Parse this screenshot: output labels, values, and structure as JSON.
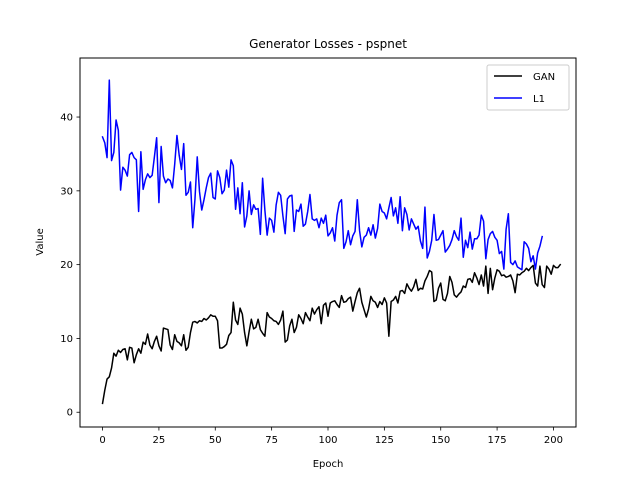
{
  "chart_data": {
    "type": "line",
    "title": "Generator Losses - pspnet",
    "xlabel": "Epoch",
    "ylabel": "Value",
    "xlim": [
      -10,
      210
    ],
    "ylim": [
      -2,
      48
    ],
    "xticks": [
      0,
      25,
      50,
      75,
      100,
      125,
      150,
      175,
      200
    ],
    "yticks": [
      0,
      10,
      20,
      30,
      40
    ],
    "legend_position": "top-right",
    "grid": false,
    "series": [
      {
        "name": "GAN",
        "color": "#000000",
        "x_start": 0,
        "x_step": 1,
        "values": [
          1.2,
          3.0,
          4.5,
          4.8,
          6.0,
          8.0,
          7.6,
          8.4,
          8.1,
          8.5,
          8.6,
          7.1,
          8.8,
          8.7,
          6.7,
          7.8,
          8.6,
          8.0,
          9.5,
          9.2,
          10.6,
          9.1,
          8.6,
          9.6,
          10.3,
          9.0,
          8.3,
          11.4,
          11.3,
          11.2,
          9.1,
          8.5,
          10.5,
          9.6,
          9.4,
          9.0,
          10.5,
          8.4,
          8.8,
          10.8,
          12.2,
          12.3,
          12.1,
          12.4,
          12.3,
          12.7,
          12.5,
          12.8,
          13.2,
          13.0,
          13.0,
          12.4,
          8.7,
          8.7,
          8.9,
          9.2,
          10.4,
          10.8,
          14.9,
          12.5,
          11.9,
          14.1,
          13.3,
          10.8,
          9.0,
          10.9,
          12.6,
          11.3,
          11.5,
          12.6,
          11.2,
          10.7,
          10.3,
          13.5,
          12.9,
          12.7,
          12.4,
          12.3,
          11.9,
          12.5,
          13.7,
          9.5,
          9.8,
          11.7,
          12.6,
          10.8,
          11.5,
          13.2,
          12.7,
          12.0,
          13.5,
          12.9,
          12.4,
          14.1,
          13.3,
          13.9,
          14.3,
          12.0,
          14.5,
          14.8,
          13.0,
          14.8,
          15.0,
          15.1,
          14.6,
          14.2,
          15.8,
          14.9,
          15.0,
          15.4,
          15.6,
          13.7,
          15.0,
          16.2,
          16.8,
          14.9,
          13.9,
          12.9,
          14.0,
          15.7,
          15.1,
          14.9,
          14.2,
          15.0,
          14.6,
          15.5,
          14.8,
          10.3,
          15.0,
          15.2,
          15.7,
          14.8,
          16.4,
          16.5,
          16.1,
          17.4,
          16.8,
          16.4,
          17.0,
          18.0,
          16.5,
          16.8,
          16.7,
          17.8,
          18.4,
          19.2,
          19.0,
          15.0,
          15.2,
          16.8,
          17.5,
          15.3,
          15.1,
          16.1,
          18.4,
          17.6,
          15.9,
          15.6,
          16.0,
          16.3,
          17.1,
          16.9,
          18.0,
          18.1,
          17.6,
          18.9,
          18.2,
          17.3,
          18.6,
          17.1,
          19.8,
          16.1,
          19.5,
          16.6,
          18.2,
          19.3,
          19.1,
          18.5,
          18.6,
          18.3,
          18.4,
          18.6,
          17.8,
          16.2,
          18.7,
          18.6,
          18.9,
          19.1,
          19.5,
          19.2,
          19.6,
          19.9,
          17.5,
          17.1,
          19.8,
          17.3,
          16.9,
          19.8,
          19.4,
          18.7,
          19.9,
          19.6,
          19.6,
          20.0
        ]
      },
      {
        "name": "L1",
        "color": "#0000ff",
        "x_start": 0,
        "x_step": 1,
        "values": [
          37.3,
          36.5,
          34.5,
          45.0,
          34.1,
          35.2,
          39.6,
          38.2,
          30.1,
          33.2,
          32.8,
          32.0,
          34.9,
          35.2,
          34.5,
          34.2,
          27.2,
          35.3,
          30.2,
          31.5,
          32.3,
          31.8,
          32.1,
          34.6,
          37.2,
          28.4,
          36.0,
          32.0,
          31.1,
          31.6,
          31.4,
          30.4,
          33.6,
          37.5,
          34.8,
          32.9,
          36.4,
          29.4,
          29.8,
          31.2,
          25.0,
          28.9,
          34.6,
          29.9,
          27.4,
          28.8,
          30.4,
          31.8,
          32.4,
          29.1,
          28.9,
          32.7,
          31.8,
          29.6,
          30.1,
          32.8,
          30.5,
          34.2,
          33.4,
          27.5,
          30.4,
          26.9,
          31.1,
          25.1,
          26.6,
          30.0,
          26.8,
          28.1,
          27.5,
          27.6,
          24.1,
          31.7,
          27.4,
          24.0,
          26.3,
          26.0,
          24.4,
          28.1,
          29.8,
          29.4,
          26.6,
          24.2,
          28.9,
          29.3,
          29.4,
          24.5,
          27.4,
          27.2,
          28.2,
          25.2,
          25.5,
          27.2,
          29.5,
          26.2,
          26.0,
          26.2,
          25.0,
          26.3,
          25.6,
          26.7,
          23.9,
          24.3,
          25.0,
          23.2,
          26.7,
          28.4,
          28.8,
          22.2,
          23.1,
          24.6,
          22.7,
          23.9,
          24.5,
          28.8,
          24.6,
          22.4,
          23.7,
          24.0,
          25.0,
          24.0,
          25.4,
          23.6,
          24.9,
          28.2,
          27.2,
          27.0,
          26.2,
          27.7,
          29.1,
          26.6,
          27.7,
          25.6,
          29.2,
          24.6,
          27.7,
          26.8,
          24.7,
          26.2,
          25.5,
          24.8,
          25.2,
          23.2,
          22.2,
          27.8,
          20.9,
          21.8,
          23.3,
          26.8,
          23.3,
          23.4,
          24.0,
          24.6,
          21.7,
          22.1,
          22.6,
          23.4,
          24.6,
          23.8,
          23.3,
          26.3,
          21.0,
          23.3,
          22.3,
          24.4,
          22.1,
          23.5,
          23.5,
          24.0,
          26.7,
          25.9,
          20.8,
          23.4,
          24.2,
          24.5,
          23.7,
          23.3,
          21.5,
          21.8,
          19.4,
          24.8,
          26.9,
          20.3,
          20.0,
          20.5,
          19.7,
          19.5,
          19.3,
          23.1,
          22.8,
          22.2,
          20.4,
          21.2,
          19.4,
          21.6,
          22.5,
          23.8
        ]
      }
    ]
  }
}
